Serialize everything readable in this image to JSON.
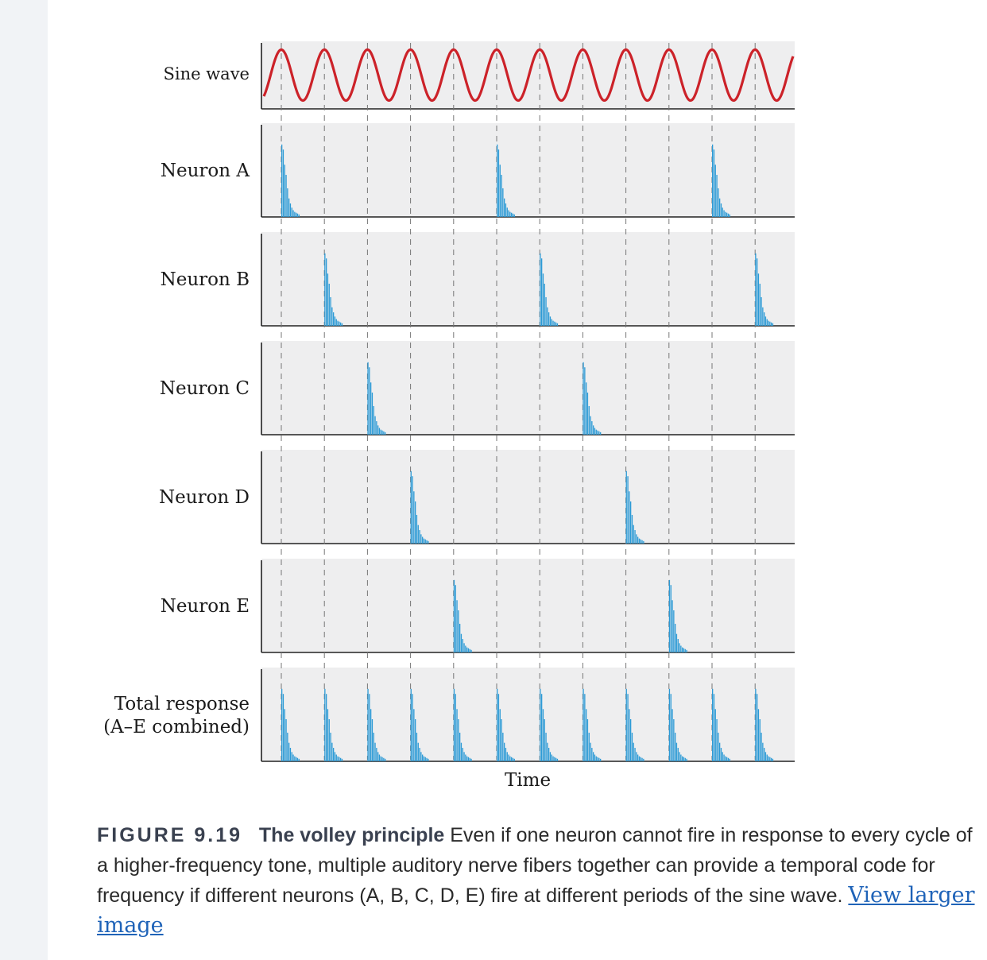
{
  "chart_data": {
    "type": "bar",
    "title": "",
    "xlabel": "Time",
    "grid": "vertical dashed lines at each sine-wave peak",
    "colors": {
      "sine": "#cc2229",
      "bars": "#2b9ad6",
      "panel_bg": "#eeeeef",
      "axis": "#222222",
      "grid": "#777777"
    },
    "cycles": 12,
    "rows": [
      {
        "label": "Sine wave",
        "kind": "sine"
      },
      {
        "label": "Neuron A",
        "kind": "spikes",
        "fires_at_cycles": [
          1,
          6,
          11
        ]
      },
      {
        "label": "Neuron B",
        "kind": "spikes",
        "fires_at_cycles": [
          2,
          7,
          12
        ]
      },
      {
        "label": "Neuron C",
        "kind": "spikes",
        "fires_at_cycles": [
          3,
          8
        ]
      },
      {
        "label": "Neuron D",
        "kind": "spikes",
        "fires_at_cycles": [
          4,
          9
        ]
      },
      {
        "label": "Neuron E",
        "kind": "spikes",
        "fires_at_cycles": [
          5,
          10
        ]
      },
      {
        "label_lines": [
          "Total response",
          "(A–E combined)"
        ],
        "kind": "spikes",
        "fires_at_cycles": [
          1,
          2,
          3,
          4,
          5,
          6,
          7,
          8,
          9,
          10,
          11,
          12
        ]
      }
    ]
  },
  "caption": {
    "figure_number": "FIGURE 9.19",
    "title": "The volley principle",
    "text": " Even if one neuron cannot fire in response to every cycle of a higher-frequency tone, multiple auditory nerve fibers together can provide a temporal code for frequency if different neurons (A, B, C, D, E) fire at different periods of the sine wave. ",
    "link_text": "View larger image"
  }
}
